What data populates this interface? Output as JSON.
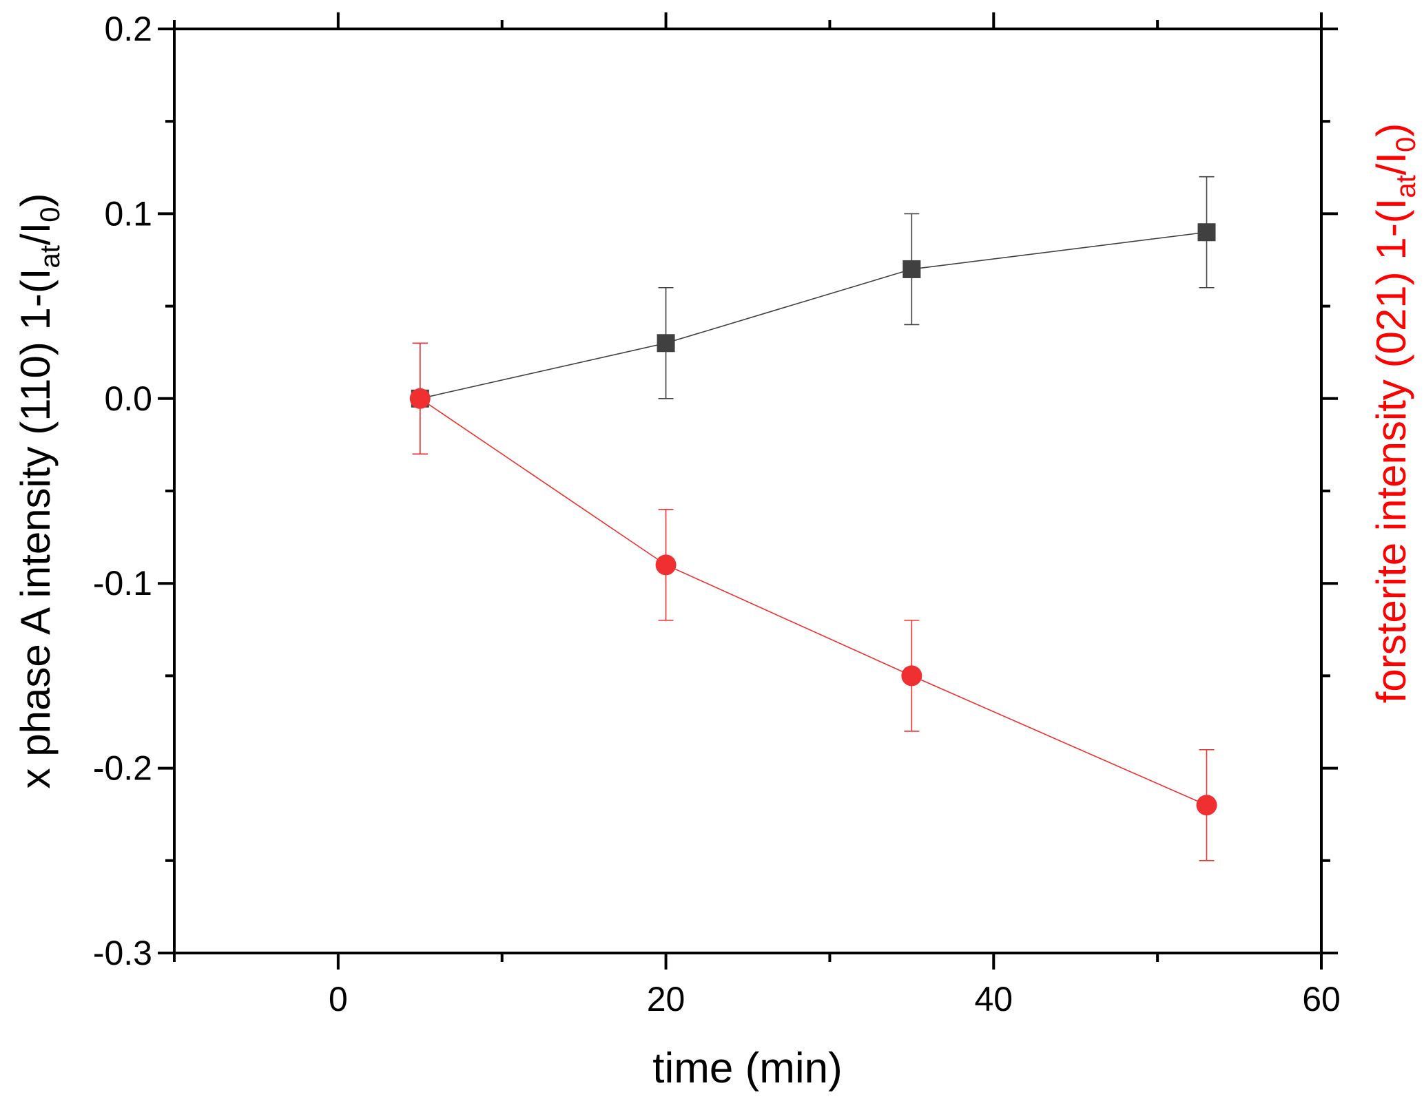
{
  "chart_data": {
    "type": "scatter",
    "title": "",
    "xlabel": "time (min)",
    "ylabel": "x phase A intensity (110) 1-(I_at/I_0)",
    "ylabel_parts": {
      "main": "x phase A intensity (110) 1-(I",
      "sub1": "at",
      "mid": "/I",
      "sub2": "0",
      "end": ")"
    },
    "y2label": "forsterite intensity (021) 1-(I_at/I_0)",
    "y2label_parts": {
      "main": "forsterite intensity (021) 1-(I",
      "sub1": "at",
      "mid": "/I",
      "sub2": "0",
      "end": ")"
    },
    "xlim": [
      -10,
      60
    ],
    "ylim": [
      -0.3,
      0.2
    ],
    "xticks": [
      0,
      20,
      40,
      60
    ],
    "xtick_labels": [
      "0",
      "20",
      "40",
      "60"
    ],
    "xminor": [
      -10,
      10,
      30,
      50
    ],
    "yticks": [
      0.2,
      0.1,
      0.0,
      -0.1,
      -0.2,
      -0.3
    ],
    "ytick_labels": [
      "0.2",
      "0.1",
      "0.0",
      "-0.1",
      "-0.2",
      "-0.3"
    ],
    "yminor": [
      0.15,
      0.05,
      -0.05,
      -0.15,
      -0.25
    ],
    "grid": false,
    "legend": "none",
    "series": [
      {
        "name": "x phase A (110)",
        "marker": "square",
        "color": "#404040",
        "x": [
          5,
          20,
          35,
          53
        ],
        "y": [
          0.0,
          0.03,
          0.07,
          0.09
        ],
        "yerr": [
          0.03,
          0.03,
          0.03,
          0.03
        ]
      },
      {
        "name": "forsterite (021)",
        "marker": "circle",
        "color": "#f03030",
        "x": [
          5,
          20,
          35,
          53
        ],
        "y": [
          0.0,
          -0.09,
          -0.15,
          -0.22
        ],
        "yerr": [
          0.03,
          0.03,
          0.03,
          0.03
        ]
      }
    ]
  }
}
